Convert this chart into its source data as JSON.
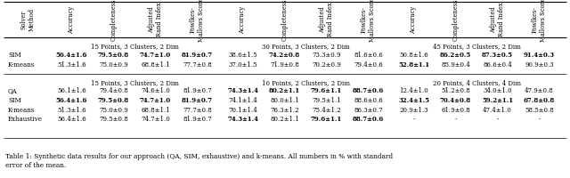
{
  "col_headers": [
    "Solver\nMethod",
    "Accuracy",
    "Completeness",
    "Adjusted\nRand Index",
    "Fowlkes-\nMallows Score",
    "Accuracy",
    "Completeness",
    "Adjusted\nRand Index",
    "Fowlkes-\nMallows Score",
    "Accuracy",
    "Completeness",
    "Adjusted\nRand Index",
    "Fowlkes-\nMallows Score"
  ],
  "section1_label": "15 Points, 3 Clusters, 2 Dim",
  "section2_label": "30 Points, 3 Clusters, 2 Dim",
  "section3_label": "45 Points, 3 Clusters, 2 Dim",
  "section4_label": "15 Points, 3 Clusters, 2 Dim",
  "section5_label": "10 Points, 2 Clusters, 2 Dim",
  "section6_label": "20 Points, 4 Clusters, 4 Dim",
  "top_rows": [
    [
      "SIM",
      "56.4±1.6",
      "79.5±0.8",
      "74.7±1.0",
      "81.9±0.7",
      "38.6±1.5",
      "74.2±0.8",
      "73.3±0.9",
      "81.6±0.6",
      "50.8±1.6",
      "86.2±0.5",
      "87.3±0.5",
      "91.4±0.3"
    ],
    [
      "K-means",
      "51.3±1.6",
      "75.0±0.9",
      "68.8±1.1",
      "77.7±0.8",
      "37.0±1.5",
      "71.9±0.8",
      "70.2±0.9",
      "79.4±0.6",
      "52.8±1.1",
      "85.9±0.4",
      "86.6±0.4",
      "90.9±0.3"
    ]
  ],
  "top_bold": {
    "0": [
      1,
      2,
      3,
      4,
      6,
      10,
      11,
      12
    ],
    "1": [
      9
    ]
  },
  "bot_rows": [
    [
      "QA",
      "56.1±1.6",
      "79.4±0.8",
      "74.6±1.0",
      "81.9±0.7",
      "74.3±1.4",
      "80.2±1.1",
      "79.6±1.1",
      "88.7±0.6",
      "12.4±1.0",
      "51.2±0.8",
      "34.0±1.0",
      "47.9±0.8"
    ],
    [
      "SIM",
      "56.4±1.6",
      "79.5±0.8",
      "74.7±1.0",
      "81.9±0.7",
      "74.1±1.4",
      "80.0±1.1",
      "79.5±1.1",
      "88.6±0.6",
      "32.4±1.5",
      "70.4±0.8",
      "59.2±1.1",
      "67.8±0.8"
    ],
    [
      "K-means",
      "51.3±1.6",
      "75.0±0.9",
      "68.8±1.1",
      "77.7±0.8",
      "70.1±1.4",
      "76.3±1.2",
      "75.4±1.2",
      "86.3±0.7",
      "20.9±1.3",
      "61.9±0.8",
      "47.4±1.0",
      "58.5±0.8"
    ],
    [
      "Exhaustive",
      "56.4±1.6",
      "79.5±0.8",
      "74.7±1.0",
      "81.9±0.7",
      "74.3±1.4",
      "80.2±1.1",
      "79.6±1.1",
      "88.7±0.6",
      "-",
      "-",
      "-",
      "-"
    ]
  ],
  "bot_bold": {
    "0": [
      5,
      6,
      7,
      8
    ],
    "1": [
      1,
      2,
      3,
      4,
      9,
      10,
      11,
      12
    ],
    "2": [],
    "3": [
      5,
      7,
      8
    ]
  },
  "caption": "Table 1: Synthetic data results for our approach (QA, SIM, exhaustive) and k-means. All numbers in % with standard\nerror of the mean.",
  "bg_color": "#ffffff",
  "text_color": "#000000",
  "header_fontsize": 4.8,
  "cell_fontsize": 5.0,
  "caption_fontsize": 5.3
}
